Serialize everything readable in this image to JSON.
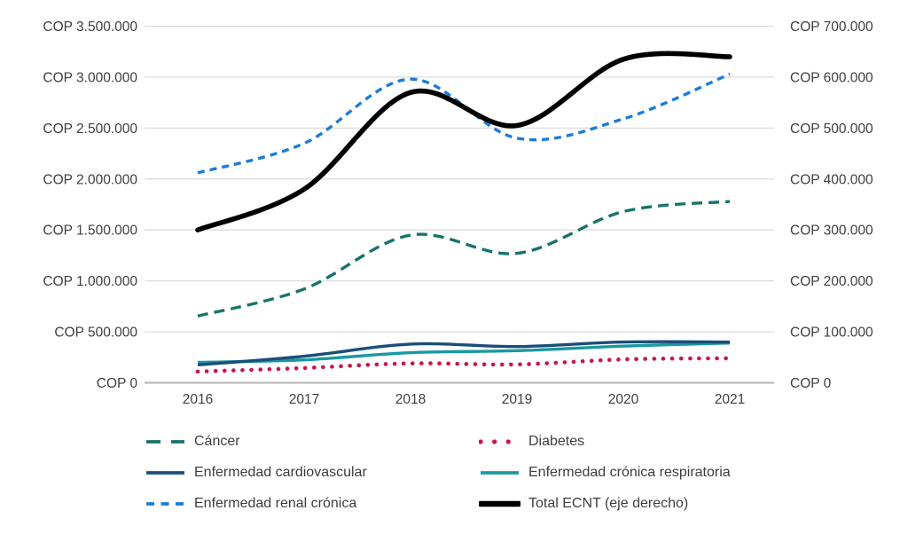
{
  "chart_data": {
    "type": "line",
    "title": "",
    "currency": "COP",
    "x_labels": [
      "2016",
      "2017",
      "2018",
      "2019",
      "2020",
      "2021"
    ],
    "x_values": [
      2016,
      2017,
      2018,
      2019,
      2020,
      2021
    ],
    "left_axis": {
      "min": 0,
      "max": 3500000,
      "step": 500000,
      "tick_values": [
        0,
        500000,
        1000000,
        1500000,
        2000000,
        2500000,
        3000000,
        3500000
      ],
      "tick_labels": [
        "COP 0",
        "COP 500.000",
        "COP 1.000.000",
        "COP 1.500.000",
        "COP 2.000.000",
        "COP 2.500.000",
        "COP 3.000.000",
        "COP 3.500.000"
      ]
    },
    "right_axis": {
      "min": 0,
      "max": 700000,
      "step": 100000,
      "tick_values": [
        0,
        100000,
        200000,
        300000,
        400000,
        500000,
        600000,
        700000
      ],
      "tick_labels": [
        "COP 0",
        "COP 100.000",
        "COP 200.000",
        "COP 300.000",
        "COP 400.000",
        "COP 500.000",
        "COP 600.000",
        "COP 700.000"
      ]
    },
    "grid": {
      "horizontal": true,
      "vertical": false
    },
    "series": [
      {
        "name": "Cáncer",
        "axis": "left",
        "color": "#17746c",
        "style": "dashed",
        "values": [
          655000,
          920000,
          1450000,
          1270000,
          1680000,
          1780000
        ]
      },
      {
        "name": "Diabetes",
        "axis": "left",
        "color": "#c9164c",
        "style": "dotted",
        "values": [
          110000,
          145000,
          190000,
          180000,
          230000,
          240000
        ]
      },
      {
        "name": "Enfermedad cardiovascular",
        "axis": "left",
        "color": "#1a4e79",
        "style": "solid",
        "values": [
          175000,
          260000,
          380000,
          355000,
          400000,
          400000
        ]
      },
      {
        "name": "Enfermedad crónica respiratoria",
        "axis": "left",
        "color": "#1899a2",
        "style": "solid",
        "values": [
          200000,
          225000,
          295000,
          315000,
          360000,
          390000
        ]
      },
      {
        "name": "Enfermedad renal crónica",
        "axis": "left",
        "color": "#1c7cd5",
        "style": "dashed-short",
        "values": [
          2060000,
          2350000,
          2980000,
          2400000,
          2590000,
          3030000
        ]
      },
      {
        "name": "Total ECNT (eje derecho)",
        "axis": "right",
        "color": "#000000",
        "style": "solid-thick",
        "values": [
          300000,
          380000,
          570000,
          505000,
          635000,
          640000
        ]
      }
    ],
    "legend": {
      "position": "bottom",
      "columns": [
        [
          0,
          2,
          4
        ],
        [
          1,
          3,
          5
        ]
      ]
    }
  },
  "colors": {
    "background": "#ffffff",
    "gridline": "#dcdcdc",
    "zero_line": "#b5b5b5",
    "axis_text": "#3e3e3e"
  }
}
